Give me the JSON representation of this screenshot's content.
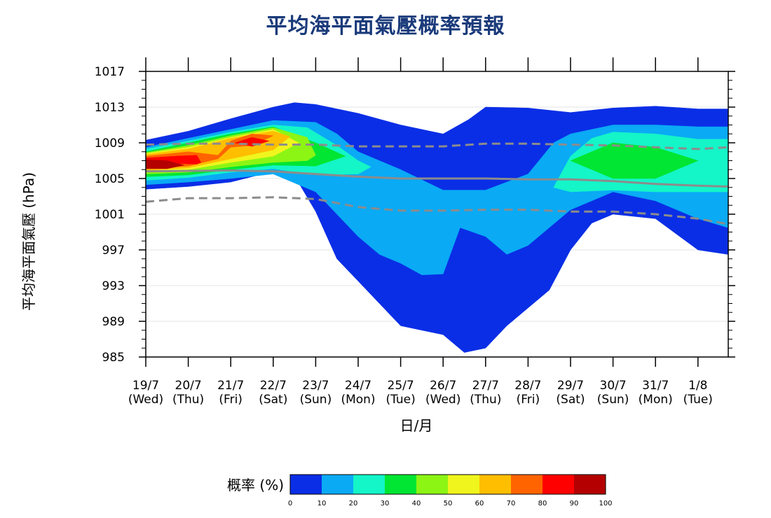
{
  "title": "平均海平面氣壓概率預報",
  "chart_data": {
    "type": "area",
    "xlabel": "日/月",
    "ylabel": "平均海平面氣壓 (hPa)",
    "y_ticks": [
      985,
      989,
      993,
      997,
      1001,
      1005,
      1009,
      1013,
      1017
    ],
    "ylim": [
      985,
      1017
    ],
    "x_ticks": [
      {
        "date": "19/7",
        "day": "(Wed)",
        "weekend": false
      },
      {
        "date": "20/7",
        "day": "(Thu)",
        "weekend": false
      },
      {
        "date": "21/7",
        "day": "(Fri)",
        "weekend": false
      },
      {
        "date": "22/7",
        "day": "(Sat)",
        "weekend": false
      },
      {
        "date": "23/7",
        "day": "(Sun)",
        "weekend": true
      },
      {
        "date": "24/7",
        "day": "(Mon)",
        "weekend": false
      },
      {
        "date": "25/7",
        "day": "(Tue)",
        "weekend": false
      },
      {
        "date": "26/7",
        "day": "(Wed)",
        "weekend": false
      },
      {
        "date": "27/7",
        "day": "(Thu)",
        "weekend": false
      },
      {
        "date": "28/7",
        "day": "(Fri)",
        "weekend": false
      },
      {
        "date": "29/7",
        "day": "(Sat)",
        "weekend": false
      },
      {
        "date": "30/7",
        "day": "(Sun)",
        "weekend": true
      },
      {
        "date": "31/7",
        "day": "(Mon)",
        "weekend": false
      },
      {
        "date": "1/8",
        "day": "(Tue)",
        "weekend": false
      }
    ],
    "x_day_index": [
      0,
      1,
      2,
      3,
      4,
      5,
      6,
      7,
      8,
      9,
      10,
      11,
      12,
      13
    ],
    "x_range_days": [
      0,
      13.7
    ],
    "weekend_color": "#ff0000",
    "bands": [
      {
        "level": 0,
        "upper": [
          [
            0,
            1009.3
          ],
          [
            1,
            1010.3
          ],
          [
            2,
            1011.7
          ],
          [
            3,
            1013.0
          ],
          [
            3.5,
            1013.5
          ],
          [
            4,
            1013.3
          ],
          [
            5,
            1012.3
          ],
          [
            6,
            1011.0
          ],
          [
            7,
            1010.0
          ],
          [
            7.6,
            1011.6
          ],
          [
            8,
            1013.0
          ],
          [
            9,
            1012.9
          ],
          [
            10,
            1012.4
          ],
          [
            11,
            1012.9
          ],
          [
            12,
            1013.1
          ],
          [
            13,
            1012.8
          ],
          [
            13.7,
            1012.8
          ]
        ],
        "lower": [
          [
            0,
            1003.8
          ],
          [
            1,
            1004.1
          ],
          [
            2,
            1004.6
          ],
          [
            3,
            1005.8
          ],
          [
            3.6,
            1004.5
          ],
          [
            4,
            1001.3
          ],
          [
            4.5,
            996.0
          ],
          [
            5,
            993.5
          ],
          [
            5.5,
            991.0
          ],
          [
            6,
            988.5
          ],
          [
            6.5,
            988.0
          ],
          [
            7,
            987.5
          ],
          [
            7.5,
            985.5
          ],
          [
            8,
            986.0
          ],
          [
            8.5,
            988.5
          ],
          [
            9,
            990.5
          ],
          [
            9.5,
            992.5
          ],
          [
            10,
            997.0
          ],
          [
            10.5,
            1000.0
          ],
          [
            11,
            1001.0
          ],
          [
            12,
            1000.5
          ],
          [
            13,
            997.0
          ],
          [
            13.7,
            996.5
          ]
        ]
      },
      {
        "level": 10,
        "upper": [
          [
            0,
            1008.5
          ],
          [
            1,
            1009.5
          ],
          [
            2,
            1010.5
          ],
          [
            3,
            1011.5
          ],
          [
            4,
            1011.3
          ],
          [
            4.5,
            1010.0
          ],
          [
            5,
            1008.0
          ],
          [
            6,
            1006.0
          ],
          [
            7,
            1003.7
          ],
          [
            8,
            1003.7
          ],
          [
            9,
            1005.5
          ],
          [
            9.6,
            1009.0
          ],
          [
            10,
            1010.0
          ],
          [
            11,
            1011.0
          ],
          [
            12,
            1011.0
          ],
          [
            13,
            1010.8
          ],
          [
            13.7,
            1010.8
          ]
        ],
        "lower": [
          [
            0,
            1004.3
          ],
          [
            1,
            1004.6
          ],
          [
            2,
            1005.0
          ],
          [
            3,
            1005.5
          ],
          [
            4,
            1003.5
          ],
          [
            4.5,
            1001.0
          ],
          [
            5,
            998.5
          ],
          [
            5.5,
            996.5
          ],
          [
            6,
            995.5
          ],
          [
            6.5,
            994.2
          ],
          [
            7,
            994.3
          ],
          [
            7.4,
            999.5
          ],
          [
            8,
            998.5
          ],
          [
            8.5,
            996.5
          ],
          [
            9,
            997.5
          ],
          [
            9.5,
            999.5
          ],
          [
            10,
            1001.5
          ],
          [
            11,
            1003.5
          ],
          [
            12,
            1002.5
          ],
          [
            13,
            1000.5
          ],
          [
            13.7,
            999.5
          ]
        ]
      },
      {
        "level": 20,
        "upper": [
          [
            0,
            1008.3
          ],
          [
            1,
            1009.2
          ],
          [
            2,
            1010.2
          ],
          [
            3,
            1011.0
          ],
          [
            3.8,
            1010.7
          ],
          [
            4.5,
            1008.7
          ],
          [
            5,
            1007.0
          ],
          [
            5.3,
            1006.3
          ]
        ],
        "lower": [
          [
            0,
            1004.8
          ],
          [
            1,
            1005.1
          ],
          [
            2,
            1005.7
          ],
          [
            3,
            1006.1
          ],
          [
            4,
            1005.4
          ],
          [
            5,
            1005.5
          ],
          [
            5.3,
            1006.3
          ]
        ]
      },
      {
        "level": 20,
        "upper": [
          [
            9.6,
            1004.0
          ],
          [
            10,
            1007.5
          ],
          [
            10.5,
            1009.5
          ],
          [
            11,
            1010.2
          ],
          [
            12,
            1010.0
          ],
          [
            13,
            1009.4
          ],
          [
            13.7,
            1009.4
          ]
        ],
        "lower": [
          [
            9.6,
            1004.0
          ],
          [
            10,
            1003.5
          ],
          [
            11,
            1003.7
          ],
          [
            12,
            1003.5
          ],
          [
            13,
            1003.5
          ],
          [
            13.7,
            1003.5
          ]
        ]
      },
      {
        "level": 30,
        "upper": [
          [
            0,
            1008.0
          ],
          [
            1,
            1009.0
          ],
          [
            2,
            1010.0
          ],
          [
            3,
            1010.8
          ],
          [
            4,
            1009.0
          ],
          [
            4.7,
            1007.5
          ]
        ],
        "lower": [
          [
            0,
            1005.2
          ],
          [
            1,
            1005.4
          ],
          [
            2,
            1006.0
          ],
          [
            3,
            1006.5
          ],
          [
            4,
            1006.4
          ],
          [
            4.7,
            1007.5
          ]
        ]
      },
      {
        "level": 30,
        "upper": [
          [
            10,
            1007.0
          ],
          [
            11,
            1009.0
          ],
          [
            12,
            1008.5
          ],
          [
            13,
            1007.0
          ]
        ],
        "lower": [
          [
            10,
            1007.0
          ],
          [
            11,
            1005.0
          ],
          [
            12,
            1005.0
          ],
          [
            13,
            1007.0
          ]
        ]
      },
      {
        "level": 40,
        "upper": [
          [
            0,
            1007.9
          ],
          [
            1,
            1008.7
          ],
          [
            2,
            1009.8
          ],
          [
            3,
            1010.7
          ],
          [
            3.8,
            1009.6
          ],
          [
            4,
            1007.6
          ]
        ],
        "lower": [
          [
            0,
            1005.5
          ],
          [
            1,
            1005.7
          ],
          [
            2,
            1006.3
          ],
          [
            3,
            1006.8
          ],
          [
            3.8,
            1007.0
          ],
          [
            4,
            1007.6
          ]
        ]
      },
      {
        "level": 50,
        "upper": [
          [
            0,
            1007.8
          ],
          [
            1,
            1008.5
          ],
          [
            2,
            1009.6
          ],
          [
            3,
            1010.5
          ],
          [
            3.6,
            1009.0
          ]
        ],
        "lower": [
          [
            0,
            1005.7
          ],
          [
            1,
            1006.0
          ],
          [
            2,
            1006.8
          ],
          [
            3,
            1007.5
          ],
          [
            3.6,
            1009.0
          ]
        ]
      },
      {
        "level": 60,
        "upper": [
          [
            0,
            1007.7
          ],
          [
            1,
            1008.3
          ],
          [
            2,
            1009.5
          ],
          [
            3,
            1010.3
          ],
          [
            3.4,
            1009.7
          ]
        ],
        "lower": [
          [
            0,
            1005.9
          ],
          [
            1,
            1006.2
          ],
          [
            2,
            1007.2
          ],
          [
            3,
            1008.2
          ],
          [
            3.4,
            1009.7
          ]
        ]
      },
      {
        "level": 70,
        "upper": [
          [
            0,
            1007.5
          ],
          [
            1,
            1008.0
          ],
          [
            1.7,
            1007.6
          ],
          [
            2,
            1009.2
          ],
          [
            2.5,
            1010.0
          ],
          [
            3,
            1009.8
          ]
        ],
        "lower": [
          [
            0,
            1006.1
          ],
          [
            1,
            1006.4
          ],
          [
            1.7,
            1007.2
          ],
          [
            2,
            1008.5
          ],
          [
            2.5,
            1008.7
          ],
          [
            3,
            1009.8
          ]
        ]
      },
      {
        "level": 80,
        "upper": [
          [
            0,
            1007.3
          ],
          [
            0.7,
            1007.5
          ],
          [
            1.2,
            1007.6
          ],
          [
            1.3,
            1006.8
          ]
        ],
        "lower": [
          [
            0,
            1006.3
          ],
          [
            0.7,
            1006.7
          ],
          [
            1.2,
            1006.6
          ],
          [
            1.3,
            1006.8
          ]
        ]
      },
      {
        "level": 80,
        "upper": [
          [
            2.1,
            1009.0
          ],
          [
            2.5,
            1009.6
          ],
          [
            2.9,
            1009.2
          ]
        ],
        "lower": [
          [
            2.1,
            1009.0
          ],
          [
            2.5,
            1008.6
          ],
          [
            2.9,
            1009.2
          ]
        ]
      },
      {
        "level": 90,
        "upper": [
          [
            0,
            1007.1
          ],
          [
            0.5,
            1007.0
          ],
          [
            0.9,
            1006.5
          ]
        ],
        "lower": [
          [
            0,
            1006.1
          ],
          [
            0.5,
            1006.1
          ],
          [
            0.9,
            1006.5
          ]
        ]
      }
    ],
    "extra_patch": {
      "level": 10,
      "points": [
        [
          5.2,
          1001.5
        ],
        [
          5.5,
          1001.4
        ],
        [
          5.5,
          1000.5
        ],
        [
          5.2,
          1000.5
        ]
      ]
    },
    "median_line": [
      [
        0,
        1005.8
      ],
      [
        2,
        1005.9
      ],
      [
        3,
        1005.8
      ],
      [
        4,
        1005.5
      ],
      [
        5,
        1005.2
      ],
      [
        6,
        1005.0
      ],
      [
        7,
        1005.0
      ],
      [
        8,
        1005.0
      ],
      [
        9,
        1004.9
      ],
      [
        10,
        1004.9
      ],
      [
        11,
        1004.7
      ],
      [
        12,
        1004.4
      ],
      [
        13,
        1004.2
      ],
      [
        13.7,
        1004.1
      ]
    ],
    "upper_dashed": [
      [
        0,
        1008.8
      ],
      [
        1,
        1008.9
      ],
      [
        2,
        1008.9
      ],
      [
        3,
        1008.8
      ],
      [
        4,
        1008.8
      ],
      [
        5,
        1008.6
      ],
      [
        6,
        1008.6
      ],
      [
        7,
        1008.6
      ],
      [
        8,
        1008.9
      ],
      [
        9,
        1008.9
      ],
      [
        10,
        1008.8
      ],
      [
        11,
        1008.7
      ],
      [
        12,
        1008.5
      ],
      [
        13,
        1008.3
      ],
      [
        13.7,
        1008.5
      ]
    ],
    "lower_dashed": [
      [
        0,
        1002.4
      ],
      [
        1,
        1002.8
      ],
      [
        2,
        1002.8
      ],
      [
        3,
        1002.9
      ],
      [
        4,
        1002.7
      ],
      [
        5,
        1001.8
      ],
      [
        6,
        1001.4
      ],
      [
        7,
        1001.4
      ],
      [
        8,
        1001.5
      ],
      [
        9,
        1001.5
      ],
      [
        10,
        1001.3
      ],
      [
        11,
        1001.3
      ],
      [
        12,
        1001.0
      ],
      [
        13,
        1000.5
      ],
      [
        13.7,
        999.9
      ]
    ],
    "line_color": "#8c8c8c",
    "colorbar": {
      "label": "概率 (%)",
      "ticks": [
        "0",
        "10",
        "20",
        "30",
        "40",
        "50",
        "60",
        "70",
        "80",
        "90",
        "100"
      ],
      "colors": [
        "#0a2ee6",
        "#0aaaf5",
        "#14f5c8",
        "#00e632",
        "#8cf514",
        "#f0f51e",
        "#ffbe00",
        "#ff6400",
        "#ff0000",
        "#b40000"
      ]
    }
  }
}
